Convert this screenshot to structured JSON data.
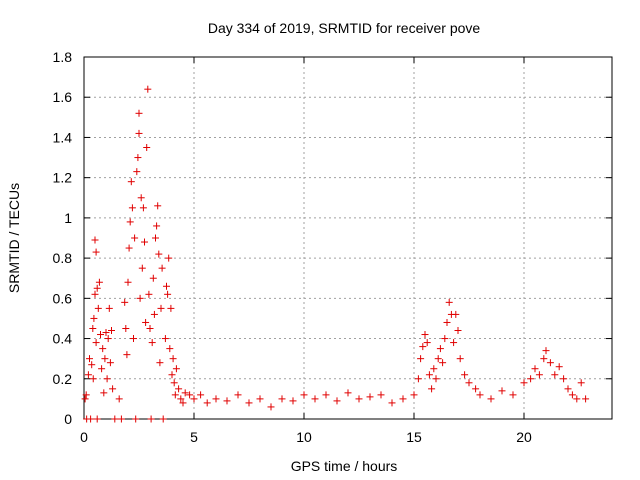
{
  "chart_data": {
    "type": "scatter",
    "title": "Day 334 of 2019, SRMTID for receiver pove",
    "xlabel": "GPS time / hours",
    "ylabel": "SRMTID / TECUs",
    "xlim": [
      0,
      24
    ],
    "ylim": [
      0,
      1.8
    ],
    "x_ticks": [
      "0",
      "5",
      "10",
      "15",
      "20"
    ],
    "y_ticks": [
      "0",
      "0.2",
      "0.4",
      "0.6",
      "0.8",
      "1",
      "1.2",
      "1.4",
      "1.6",
      "1.8"
    ],
    "grid": true,
    "marker": "+",
    "color": "#e00000",
    "series": [
      {
        "values": [
          [
            0.05,
            0.1
          ],
          [
            0.1,
            0.12
          ],
          [
            0.12,
            0.0
          ],
          [
            0.2,
            0.22
          ],
          [
            0.25,
            0.3
          ],
          [
            0.3,
            0.0
          ],
          [
            0.35,
            0.27
          ],
          [
            0.4,
            0.45
          ],
          [
            0.42,
            0.2
          ],
          [
            0.45,
            0.5
          ],
          [
            0.5,
            0.62
          ],
          [
            0.5,
            0.89
          ],
          [
            0.55,
            0.83
          ],
          [
            0.55,
            0.38
          ],
          [
            0.6,
            0.65
          ],
          [
            0.6,
            0.0
          ],
          [
            0.65,
            0.55
          ],
          [
            0.7,
            0.68
          ],
          [
            0.75,
            0.42
          ],
          [
            0.8,
            0.25
          ],
          [
            0.85,
            0.35
          ],
          [
            0.9,
            0.13
          ],
          [
            0.95,
            0.3
          ],
          [
            1.0,
            0.43
          ],
          [
            1.05,
            0.2
          ],
          [
            1.1,
            0.4
          ],
          [
            1.15,
            0.55
          ],
          [
            1.2,
            0.28
          ],
          [
            1.25,
            0.44
          ],
          [
            1.3,
            0.15
          ],
          [
            1.4,
            0.0
          ],
          [
            1.6,
            0.1
          ],
          [
            1.7,
            0.0
          ],
          [
            1.85,
            0.58
          ],
          [
            1.9,
            0.45
          ],
          [
            1.95,
            0.32
          ],
          [
            2.0,
            0.68
          ],
          [
            2.05,
            0.85
          ],
          [
            2.1,
            0.98
          ],
          [
            2.15,
            1.18
          ],
          [
            2.2,
            1.05
          ],
          [
            2.25,
            0.4
          ],
          [
            2.3,
            0.9
          ],
          [
            2.35,
            0.0
          ],
          [
            2.4,
            1.23
          ],
          [
            2.45,
            1.3
          ],
          [
            2.5,
            1.52
          ],
          [
            2.5,
            1.42
          ],
          [
            2.55,
            0.6
          ],
          [
            2.6,
            1.1
          ],
          [
            2.65,
            0.75
          ],
          [
            2.7,
            1.05
          ],
          [
            2.75,
            0.88
          ],
          [
            2.8,
            0.48
          ],
          [
            2.85,
            1.35
          ],
          [
            2.9,
            1.64
          ],
          [
            2.95,
            0.62
          ],
          [
            3.0,
            0.45
          ],
          [
            3.05,
            0.0
          ],
          [
            3.1,
            0.38
          ],
          [
            3.15,
            0.7
          ],
          [
            3.2,
            0.52
          ],
          [
            3.25,
            0.9
          ],
          [
            3.3,
            0.96
          ],
          [
            3.35,
            1.06
          ],
          [
            3.4,
            0.82
          ],
          [
            3.45,
            0.28
          ],
          [
            3.5,
            0.55
          ],
          [
            3.55,
            0.75
          ],
          [
            3.6,
            0.0
          ],
          [
            3.7,
            0.4
          ],
          [
            3.75,
            0.66
          ],
          [
            3.8,
            0.62
          ],
          [
            3.85,
            0.8
          ],
          [
            3.9,
            0.35
          ],
          [
            3.95,
            0.55
          ],
          [
            4.0,
            0.22
          ],
          [
            4.05,
            0.3
          ],
          [
            4.1,
            0.18
          ],
          [
            4.15,
            0.12
          ],
          [
            4.2,
            0.25
          ],
          [
            4.3,
            0.15
          ],
          [
            4.4,
            0.1
          ],
          [
            4.5,
            0.08
          ],
          [
            4.6,
            0.13
          ],
          [
            4.8,
            0.12
          ],
          [
            5.0,
            0.1
          ],
          [
            5.3,
            0.12
          ],
          [
            5.6,
            0.08
          ],
          [
            6.0,
            0.1
          ],
          [
            6.5,
            0.09
          ],
          [
            7.0,
            0.12
          ],
          [
            7.5,
            0.08
          ],
          [
            8.0,
            0.1
          ],
          [
            8.5,
            0.06
          ],
          [
            9.0,
            0.1
          ],
          [
            9.5,
            0.09
          ],
          [
            10.0,
            0.12
          ],
          [
            10.5,
            0.1
          ],
          [
            11.0,
            0.12
          ],
          [
            11.5,
            0.09
          ],
          [
            12.0,
            0.13
          ],
          [
            12.5,
            0.1
          ],
          [
            13.0,
            0.11
          ],
          [
            13.5,
            0.12
          ],
          [
            14.0,
            0.08
          ],
          [
            14.5,
            0.1
          ],
          [
            15.0,
            0.12
          ],
          [
            15.2,
            0.2
          ],
          [
            15.3,
            0.3
          ],
          [
            15.4,
            0.36
          ],
          [
            15.5,
            0.42
          ],
          [
            15.6,
            0.38
          ],
          [
            15.7,
            0.22
          ],
          [
            15.8,
            0.15
          ],
          [
            15.9,
            0.25
          ],
          [
            16.0,
            0.2
          ],
          [
            16.1,
            0.3
          ],
          [
            16.2,
            0.35
          ],
          [
            16.3,
            0.28
          ],
          [
            16.4,
            0.4
          ],
          [
            16.5,
            0.48
          ],
          [
            16.6,
            0.58
          ],
          [
            16.7,
            0.52
          ],
          [
            16.8,
            0.38
          ],
          [
            16.9,
            0.52
          ],
          [
            17.0,
            0.44
          ],
          [
            17.1,
            0.3
          ],
          [
            17.3,
            0.22
          ],
          [
            17.5,
            0.18
          ],
          [
            17.8,
            0.15
          ],
          [
            18.0,
            0.12
          ],
          [
            18.5,
            0.1
          ],
          [
            19.0,
            0.14
          ],
          [
            19.5,
            0.12
          ],
          [
            20.0,
            0.18
          ],
          [
            20.3,
            0.2
          ],
          [
            20.5,
            0.25
          ],
          [
            20.7,
            0.22
          ],
          [
            20.9,
            0.3
          ],
          [
            21.0,
            0.34
          ],
          [
            21.2,
            0.28
          ],
          [
            21.4,
            0.22
          ],
          [
            21.6,
            0.26
          ],
          [
            21.8,
            0.2
          ],
          [
            22.0,
            0.15
          ],
          [
            22.2,
            0.12
          ],
          [
            22.4,
            0.1
          ],
          [
            22.6,
            0.18
          ],
          [
            22.8,
            0.1
          ]
        ]
      }
    ]
  }
}
